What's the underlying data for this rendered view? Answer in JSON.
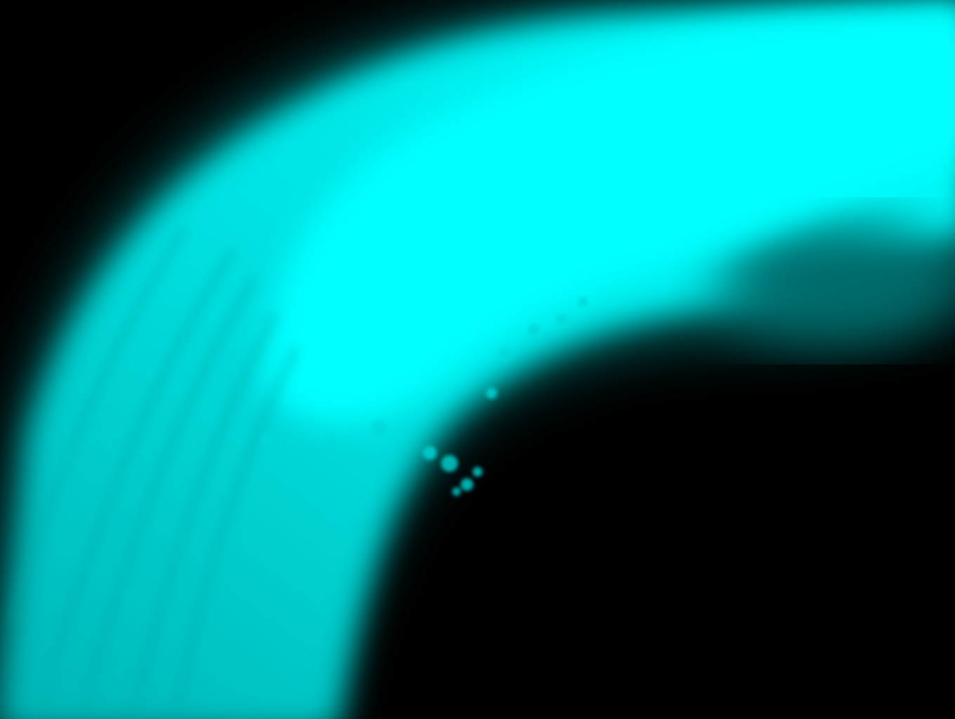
{
  "image": {
    "colors": {
      "background": "#000000",
      "glow": "#00ffff",
      "glow_mid": "#00d8d8",
      "glow_dim": "#00a8a8",
      "glow_dark": "#006a6a"
    }
  }
}
